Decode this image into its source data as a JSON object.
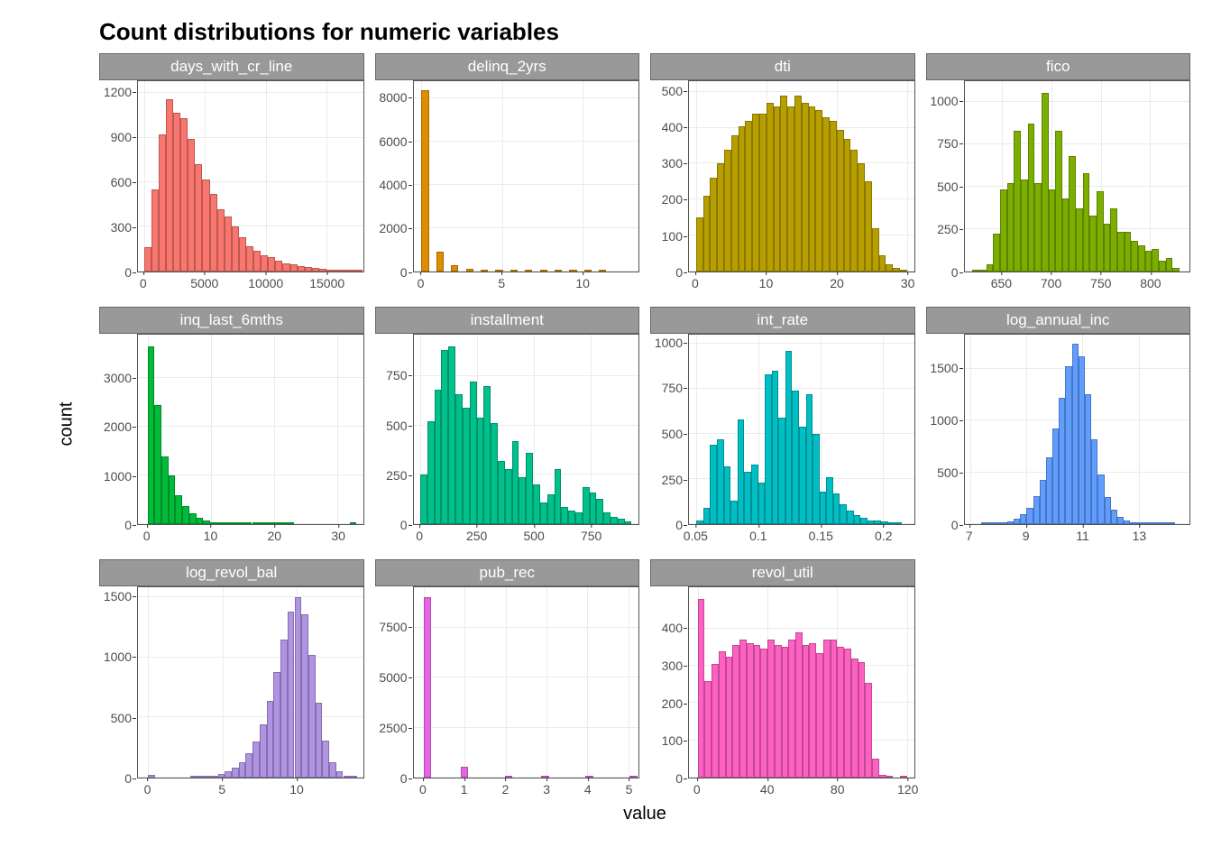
{
  "title": "Count distributions for numeric variables",
  "ylab": "count",
  "xlab": "value",
  "strip_bg": "#999999",
  "strip_fg": "#ffffff",
  "panel_bg": "#ffffff",
  "grid_color": "#ebebeb",
  "tick_color": "#4d4d4d",
  "facets": [
    {
      "name": "days_with_cr_line",
      "color": "#f8766d",
      "xlim": [
        -500,
        18000
      ],
      "xticks": [
        0,
        5000,
        10000,
        15000
      ],
      "ylim": [
        0,
        1280
      ],
      "yticks": [
        0,
        300,
        600,
        900,
        1200
      ],
      "bin_start": 0,
      "bin_width": 600,
      "values": [
        160,
        550,
        920,
        1160,
        1070,
        1030,
        890,
        720,
        620,
        520,
        420,
        370,
        300,
        230,
        170,
        140,
        110,
        95,
        70,
        55,
        45,
        35,
        28,
        20,
        15,
        10,
        8,
        5,
        3,
        2
      ]
    },
    {
      "name": "delinq_2yrs",
      "color": "#de8c00",
      "xlim": [
        -0.5,
        13.5
      ],
      "xticks": [
        0,
        5,
        10
      ],
      "ylim": [
        0,
        8800
      ],
      "yticks": [
        0,
        2000,
        4000,
        6000,
        8000
      ],
      "bin_start": 0,
      "bin_width": 0.46,
      "values": [
        8400,
        0,
        910,
        0,
        280,
        0,
        130,
        0,
        60,
        0,
        30,
        0,
        15,
        0,
        8,
        0,
        4,
        0,
        2,
        0,
        1,
        0,
        1,
        0,
        1
      ]
    },
    {
      "name": "dti",
      "color": "#b79f00",
      "xlim": [
        -1,
        31
      ],
      "xticks": [
        0,
        10,
        20,
        30
      ],
      "ylim": [
        0,
        530
      ],
      "yticks": [
        0,
        100,
        200,
        300,
        400,
        500
      ],
      "bin_start": 0,
      "bin_width": 1,
      "values": [
        150,
        210,
        260,
        300,
        340,
        380,
        405,
        420,
        440,
        440,
        470,
        460,
        490,
        460,
        490,
        470,
        460,
        450,
        430,
        420,
        395,
        370,
        340,
        300,
        250,
        120,
        45,
        20,
        10,
        5
      ]
    },
    {
      "name": "fico",
      "color": "#7cae00",
      "xlim": [
        612,
        840
      ],
      "xticks": [
        650,
        700,
        750,
        800
      ],
      "ylim": [
        0,
        1120
      ],
      "yticks": [
        0,
        250,
        500,
        750,
        1000
      ],
      "bin_start": 620,
      "bin_width": 7,
      "values": [
        5,
        10,
        40,
        220,
        480,
        520,
        830,
        540,
        870,
        520,
        1050,
        480,
        830,
        430,
        680,
        370,
        580,
        330,
        470,
        280,
        370,
        230,
        230,
        180,
        150,
        120,
        130,
        60,
        80,
        20
      ]
    },
    {
      "name": "inq_last_6mths",
      "color": "#00ba38",
      "xlim": [
        -1.5,
        34
      ],
      "xticks": [
        0,
        10,
        20,
        30
      ],
      "ylim": [
        0,
        3900
      ],
      "yticks": [
        0,
        1000,
        2000,
        3000
      ],
      "bin_start": 0,
      "bin_width": 1.1,
      "values": [
        3650,
        2450,
        1400,
        1000,
        590,
        370,
        220,
        130,
        75,
        50,
        30,
        18,
        12,
        8,
        5,
        3,
        2,
        2,
        1,
        1,
        1,
        0,
        0,
        0,
        0,
        0,
        0,
        0,
        0,
        1
      ]
    },
    {
      "name": "installment",
      "color": "#00c08b",
      "xlim": [
        -30,
        960
      ],
      "xticks": [
        0,
        250,
        500,
        750
      ],
      "ylim": [
        0,
        960
      ],
      "yticks": [
        0,
        250,
        500,
        750
      ],
      "bin_start": 0,
      "bin_width": 31,
      "values": [
        250,
        520,
        680,
        880,
        900,
        660,
        590,
        720,
        540,
        700,
        510,
        320,
        280,
        420,
        240,
        360,
        200,
        110,
        150,
        280,
        90,
        70,
        60,
        190,
        160,
        130,
        60,
        40,
        30,
        15
      ]
    },
    {
      "name": "int_rate",
      "color": "#00bfc4",
      "xlim": [
        0.044,
        0.225
      ],
      "xticks": [
        0.05,
        0.1,
        0.15,
        0.2
      ],
      "ylim": [
        0,
        1050
      ],
      "yticks": [
        0,
        250,
        500,
        750,
        1000
      ],
      "bin_start": 0.05,
      "bin_width": 0.0055,
      "values": [
        20,
        90,
        440,
        470,
        320,
        130,
        580,
        290,
        330,
        230,
        830,
        850,
        590,
        960,
        740,
        540,
        720,
        500,
        180,
        260,
        170,
        110,
        75,
        50,
        35,
        22,
        20,
        15,
        8,
        4
      ]
    },
    {
      "name": "log_annual_inc",
      "color": "#619cff",
      "xlim": [
        6.8,
        14.8
      ],
      "xticks": [
        7,
        9,
        11,
        13
      ],
      "ylim": [
        0,
        1830
      ],
      "yticks": [
        0,
        500,
        1000,
        1500
      ],
      "bin_start": 7.4,
      "bin_width": 0.23,
      "values": [
        2,
        4,
        8,
        15,
        30,
        55,
        95,
        160,
        270,
        430,
        650,
        920,
        1220,
        1520,
        1740,
        1620,
        1250,
        820,
        480,
        260,
        140,
        75,
        40,
        22,
        12,
        7,
        4,
        2,
        1,
        1
      ]
    },
    {
      "name": "log_revol_bal",
      "color": "#b094e3",
      "xlim": [
        -0.7,
        14.5
      ],
      "xticks": [
        0,
        5,
        10
      ],
      "ylim": [
        0,
        1580
      ],
      "yticks": [
        0,
        500,
        1000,
        1500
      ],
      "bin_start": 0,
      "bin_width": 0.47,
      "values": [
        26,
        0,
        0,
        0,
        0,
        0,
        2,
        5,
        10,
        18,
        30,
        50,
        80,
        130,
        200,
        300,
        440,
        640,
        880,
        1150,
        1380,
        1500,
        1360,
        1020,
        620,
        310,
        130,
        50,
        18,
        6
      ]
    },
    {
      "name": "pub_rec",
      "color": "#e664e5",
      "xlim": [
        -0.25,
        5.25
      ],
      "xticks": [
        0,
        1,
        2,
        3,
        4,
        5
      ],
      "ylim": [
        0,
        9500
      ],
      "yticks": [
        0,
        2500,
        5000,
        7500
      ],
      "bin_start": 0,
      "bin_width": 0.18,
      "values": [
        9020,
        0,
        0,
        0,
        0,
        530,
        0,
        0,
        0,
        0,
        0,
        50,
        0,
        0,
        0,
        0,
        10,
        0,
        0,
        0,
        0,
        0,
        4,
        0,
        0,
        0,
        0,
        0,
        1
      ]
    },
    {
      "name": "revol_util",
      "color": "#ff61c3",
      "xlim": [
        -5,
        124
      ],
      "xticks": [
        0,
        40,
        80,
        120
      ],
      "ylim": [
        0,
        510
      ],
      "yticks": [
        0,
        100,
        200,
        300,
        400
      ],
      "bin_start": 0,
      "bin_width": 4,
      "values": [
        480,
        260,
        305,
        340,
        325,
        355,
        370,
        360,
        355,
        345,
        370,
        355,
        350,
        370,
        390,
        355,
        360,
        335,
        370,
        370,
        350,
        345,
        320,
        310,
        255,
        50,
        8,
        3,
        0,
        1
      ]
    }
  ]
}
